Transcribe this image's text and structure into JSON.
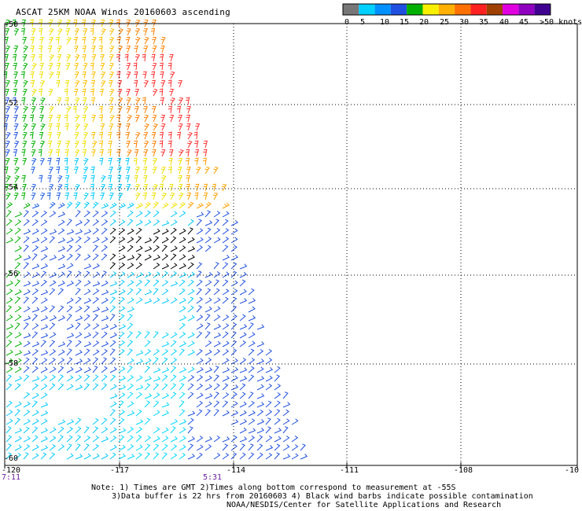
{
  "title": "ASCAT 25KM NOAA Winds 20160603 ascending",
  "legend": {
    "colors": [
      "#777777",
      "#00d0ff",
      "#0090ff",
      "#2050e0",
      "#00b000",
      "#f8f000",
      "#ffb000",
      "#ff7000",
      "#ff2020",
      "#a04000",
      "#e000e0",
      "#9000c0",
      "#400090"
    ],
    "labels": [
      "0",
      "5",
      "10",
      "15",
      "20",
      "25",
      "30",
      "35",
      "40",
      "45",
      ">50 knots"
    ]
  },
  "axes": {
    "lat_labels": [
      "-50",
      "-52",
      "-54",
      "-56",
      "-58",
      "-60"
    ],
    "lon_labels": [
      "-120",
      "-117",
      "-114",
      "-111",
      "-108",
      "-10"
    ]
  },
  "times": [
    "7:11",
    "5:31"
  ],
  "notes": [
    "Note: 1) Times are GMT 2)Times along bottom correspond to measurement at -55S",
    "3)Data buffer is 22 hrs from 20160603 4) Black wind barbs indicate possible contamination",
    "NOAA/NESDIS/Center for Satellite Applications and Research"
  ]
}
